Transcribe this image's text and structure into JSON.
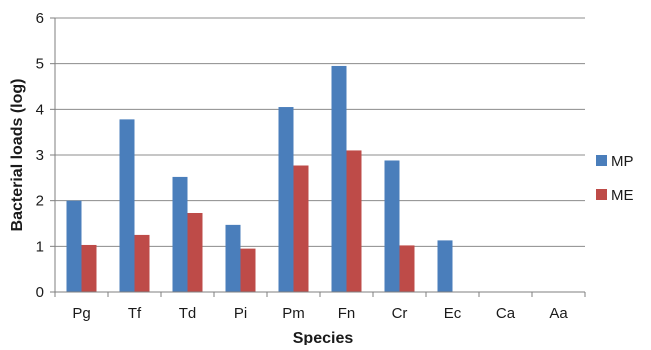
{
  "chart_data": {
    "type": "bar",
    "title": "",
    "xlabel": "Species",
    "ylabel": "Bacterial loads (log)",
    "ylim": [
      0,
      6
    ],
    "yticks": [
      "0",
      "1",
      "2",
      "3",
      "4",
      "5",
      "6"
    ],
    "grid": true,
    "legend_position": "right",
    "categories": [
      "Pg",
      "Tf",
      "Td",
      "Pi",
      "Pm",
      "Fn",
      "Cr",
      "Ec",
      "Ca",
      "Aa"
    ],
    "series": [
      {
        "name": "MP",
        "color": "#4a7ebb",
        "values": [
          2.0,
          3.78,
          2.52,
          1.47,
          4.05,
          4.95,
          2.88,
          1.13,
          0,
          0
        ]
      },
      {
        "name": "ME",
        "color": "#be4b48",
        "values": [
          1.03,
          1.25,
          1.73,
          0.95,
          2.77,
          3.1,
          1.02,
          0,
          0,
          0
        ]
      }
    ]
  }
}
